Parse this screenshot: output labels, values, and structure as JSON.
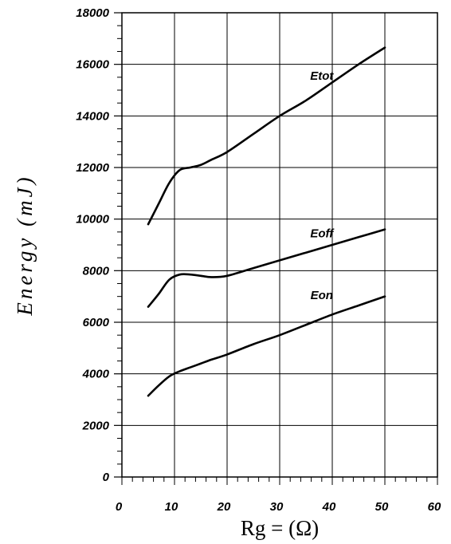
{
  "chart_data": {
    "type": "line",
    "xlabel": "Rg = (Ω)",
    "ylabel": "Energy (mJ)",
    "xlim": [
      0,
      60
    ],
    "ylim": [
      0,
      18000
    ],
    "x_ticks": [
      "0",
      "10",
      "20",
      "30",
      "40",
      "50",
      "60"
    ],
    "y_ticks": [
      "0",
      "2000",
      "4000",
      "6000",
      "8000",
      "10000",
      "12000",
      "14000",
      "16000",
      "18000"
    ],
    "grid": true,
    "series": [
      {
        "name": "Etot",
        "x": [
          5,
          7,
          9,
          11,
          13,
          15,
          17,
          20,
          25,
          30,
          35,
          40,
          45,
          50
        ],
        "y": [
          9800,
          10600,
          11400,
          11900,
          12000,
          12100,
          12300,
          12600,
          13300,
          14000,
          14600,
          15300,
          16000,
          16650
        ]
      },
      {
        "name": "Eoff",
        "x": [
          5,
          7,
          9,
          11,
          13,
          15,
          17,
          20,
          25,
          30,
          35,
          40,
          45,
          50
        ],
        "y": [
          6600,
          7100,
          7650,
          7850,
          7850,
          7800,
          7750,
          7800,
          8100,
          8400,
          8700,
          9000,
          9300,
          9600
        ]
      },
      {
        "name": "Eon",
        "x": [
          5,
          7,
          9,
          11,
          13,
          15,
          17,
          20,
          25,
          30,
          35,
          40,
          45,
          50
        ],
        "y": [
          3150,
          3550,
          3900,
          4100,
          4250,
          4400,
          4550,
          4750,
          5150,
          5500,
          5900,
          6300,
          6650,
          7000
        ]
      }
    ],
    "annotations": [
      {
        "text": "Etot",
        "series": "Etot",
        "x": 38,
        "y": 15400
      },
      {
        "text": "Eoff",
        "series": "Eoff",
        "x": 38,
        "y": 9300
      },
      {
        "text": "Eon",
        "series": "Eon",
        "x": 38,
        "y": 6900
      }
    ]
  }
}
